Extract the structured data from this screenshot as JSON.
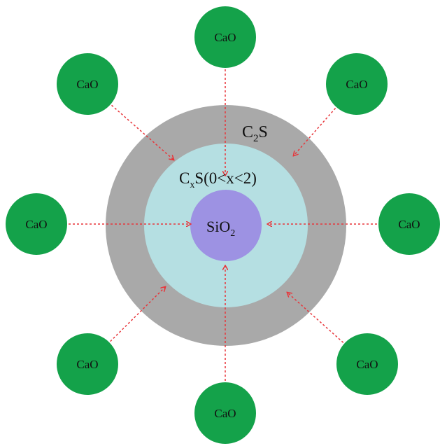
{
  "colors": {
    "cao_fill": "#14a24a",
    "outer_shell_fill": "#a9a9a9",
    "middle_shell_fill": "#b5dfe2",
    "core_fill": "#9d92e3",
    "arrow_color": "#e8353a"
  },
  "layers": {
    "outer": {
      "base": "C",
      "subscript": "2",
      "suffix": "S"
    },
    "middle": {
      "base": "C",
      "subscript": "x",
      "suffix": "S(0<x<2)"
    },
    "core": {
      "base": "SiO",
      "subscript": "2"
    }
  },
  "cao_particles": [
    {
      "label": "CaO"
    },
    {
      "label": "CaO"
    },
    {
      "label": "CaO"
    },
    {
      "label": "CaO"
    },
    {
      "label": "CaO"
    },
    {
      "label": "CaO"
    },
    {
      "label": "CaO"
    },
    {
      "label": "CaO"
    }
  ],
  "arrow_style": "dashed"
}
